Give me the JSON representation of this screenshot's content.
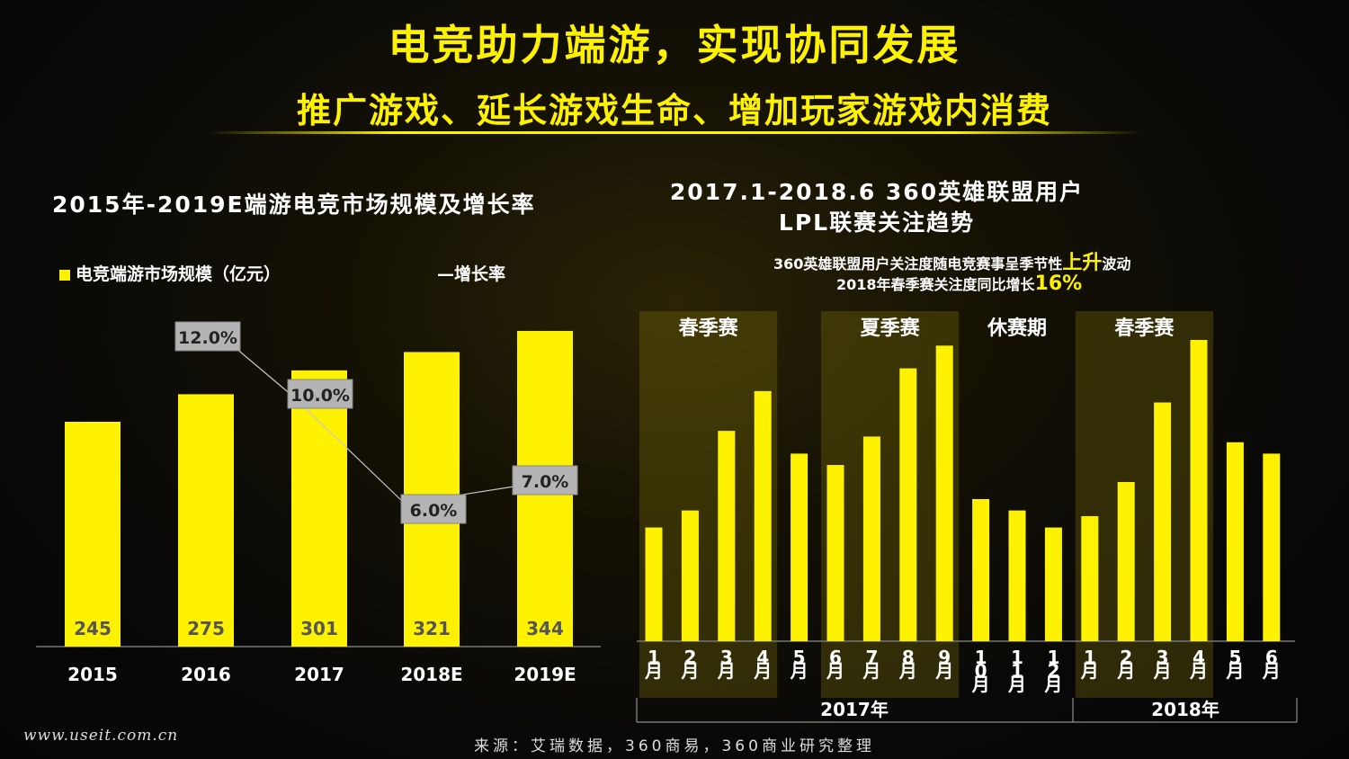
{
  "header": {
    "title": "电竞助力端游，实现协同发展",
    "subtitle": "推广游戏、延长游戏生命、增加玩家游戏内消费"
  },
  "left_chart": {
    "title": "2015年-2019E端游电竞市场规模及增长率",
    "legend_bar": "电竞端游市场规模（亿元）",
    "legend_line": "—增长率"
  },
  "right_chart": {
    "title_line1": "2017.1-2018.6 360英雄联盟用户",
    "title_line2": "LPL联赛关注趋势",
    "note1_pre": "360英雄联盟用户关注度随电竞赛事呈季节性",
    "note1_hl": "上升",
    "note1_post": "波动",
    "note2_pre": "2018年春季赛关注度同比增长",
    "note2_hl": "16%"
  },
  "footer": {
    "source": "来源：艾瑞数据，360商易，360商业研究整理",
    "watermark": "www.useit.com.cn"
  },
  "colors": {
    "accent": "#fff200",
    "label_box": "#b4b4b4"
  },
  "chart_data": [
    {
      "type": "bar",
      "title": "2015年-2019E端游电竞市场规模及增长率",
      "categories": [
        "2015",
        "2016",
        "2017",
        "2018E",
        "2019E"
      ],
      "series": [
        {
          "name": "电竞端游市场规模（亿元）",
          "values": [
            245,
            275,
            301,
            321,
            344
          ],
          "labels": [
            "245",
            "275",
            "301",
            "321",
            "344"
          ]
        },
        {
          "name": "增长率",
          "type": "line",
          "values": [
            null,
            12.0,
            10.0,
            6.0,
            7.0
          ],
          "labels": [
            "",
            "12.0%",
            "10.0%",
            "6.0%",
            "7.0%"
          ]
        }
      ],
      "legend": "top"
    },
    {
      "type": "bar",
      "title": "2017.1-2018.6 360英雄联盟用户 LPL联赛关注趋势",
      "categories": [
        "1月",
        "2月",
        "3月",
        "4月",
        "5月",
        "6月",
        "7月",
        "8月",
        "9月",
        "10月",
        "11月",
        "12月",
        "1月",
        "2月",
        "3月",
        "4月",
        "5月",
        "6月"
      ],
      "values": [
        20,
        23,
        37,
        44,
        33,
        31,
        36,
        48,
        52,
        25,
        23,
        20,
        22,
        28,
        42,
        53,
        35,
        33
      ],
      "years": [
        {
          "label": "2017年",
          "start": 0,
          "end": 11
        },
        {
          "label": "2018年",
          "start": 12,
          "end": 17
        }
      ],
      "seasons": [
        {
          "label": "春季赛",
          "start": 0,
          "end": 3,
          "shaded": true
        },
        {
          "label": "夏季赛",
          "start": 5,
          "end": 8,
          "shaded": true
        },
        {
          "label": "休赛期",
          "start": 9,
          "end": 11,
          "shaded": false
        },
        {
          "label": "春季赛",
          "start": 12,
          "end": 15,
          "shaded": true
        }
      ],
      "ylim": [
        0,
        58
      ],
      "grid": false
    }
  ]
}
